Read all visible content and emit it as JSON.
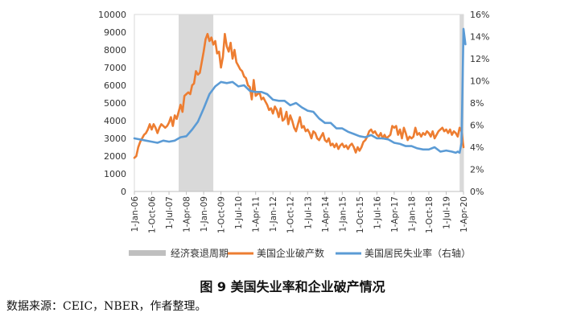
{
  "caption": "图 9  美国失业率和企业破产情况",
  "source": "数据来源：CEIC，NBER，作者整理。",
  "chart_data": {
    "type": "line",
    "title": "",
    "xlabel": "",
    "ylabel": "",
    "left_axis": {
      "min": 0,
      "max": 10000,
      "ticks": [
        "0",
        "1000",
        "2000",
        "3000",
        "4000",
        "5000",
        "6000",
        "7000",
        "8000",
        "9000",
        "10000"
      ]
    },
    "right_axis": {
      "min": 0,
      "max": 16,
      "ticks": [
        "0%",
        "2%",
        "4%",
        "6%",
        "8%",
        "10%",
        "12%",
        "14%",
        "16%"
      ]
    },
    "x_tick_labels": [
      "1-Jan-06",
      "1-Oct-06",
      "1-Jul-07",
      "1-Apr-08",
      "1-Jan-09",
      "1-Oct-09",
      "1-Jul-10",
      "1-Apr-11",
      "1-Jan-12",
      "1-Oct-12",
      "1-Jul-13",
      "1-Apr-14",
      "1-Jan-15",
      "1-Oct-15",
      "1-Jul-16",
      "1-Apr-17",
      "1-Jan-18",
      "1-Oct-18",
      "1-Jul-19",
      "1-Apr-20"
    ],
    "x_range": [
      "2006-01",
      "2020-04"
    ],
    "recessions": [
      {
        "start": "2007-12",
        "end": "2009-06"
      },
      {
        "start": "2020-02",
        "end": "2020-04"
      }
    ],
    "legend": {
      "position": "bottom",
      "items": [
        "经济衰退周期",
        "美国企业破产数",
        "美国居民失业率（右轴）"
      ]
    },
    "colors": {
      "recession": "#d9d9d9",
      "bankruptcy": "#ed7d31",
      "unemployment": "#5b9bd5"
    },
    "series": [
      {
        "name": "美国企业破产数",
        "axis": "left",
        "points": [
          [
            "2006-01",
            1900
          ],
          [
            "2006-02",
            2000
          ],
          [
            "2006-03",
            2500
          ],
          [
            "2006-04",
            2800
          ],
          [
            "2006-05",
            3000
          ],
          [
            "2006-06",
            3200
          ],
          [
            "2006-07",
            3300
          ],
          [
            "2006-08",
            3500
          ],
          [
            "2006-09",
            3800
          ],
          [
            "2006-10",
            3500
          ],
          [
            "2006-11",
            3800
          ],
          [
            "2006-12",
            3600
          ],
          [
            "2007-01",
            3300
          ],
          [
            "2007-02",
            3600
          ],
          [
            "2007-03",
            3800
          ],
          [
            "2007-04",
            3700
          ],
          [
            "2007-05",
            3600
          ],
          [
            "2007-06",
            3700
          ],
          [
            "2007-07",
            3900
          ],
          [
            "2007-08",
            4200
          ],
          [
            "2007-09",
            3700
          ],
          [
            "2007-10",
            4300
          ],
          [
            "2007-11",
            4100
          ],
          [
            "2007-12",
            4500
          ],
          [
            "2008-01",
            4900
          ],
          [
            "2008-02",
            4500
          ],
          [
            "2008-03",
            5400
          ],
          [
            "2008-04",
            5500
          ],
          [
            "2008-05",
            5600
          ],
          [
            "2008-06",
            5500
          ],
          [
            "2008-07",
            6000
          ],
          [
            "2008-08",
            6100
          ],
          [
            "2008-09",
            6800
          ],
          [
            "2008-10",
            6600
          ],
          [
            "2008-11",
            6700
          ],
          [
            "2008-12",
            7300
          ],
          [
            "2009-01",
            7900
          ],
          [
            "2009-02",
            8600
          ],
          [
            "2009-03",
            8900
          ],
          [
            "2009-04",
            8500
          ],
          [
            "2009-05",
            8700
          ],
          [
            "2009-06",
            8300
          ],
          [
            "2009-07",
            8500
          ],
          [
            "2009-08",
            7800
          ],
          [
            "2009-09",
            7900
          ],
          [
            "2009-10",
            7000
          ],
          [
            "2009-11",
            7600
          ],
          [
            "2009-12",
            8900
          ],
          [
            "2010-01",
            8200
          ],
          [
            "2010-02",
            7900
          ],
          [
            "2010-03",
            8400
          ],
          [
            "2010-04",
            7500
          ],
          [
            "2010-05",
            8000
          ],
          [
            "2010-06",
            7300
          ],
          [
            "2010-07",
            7100
          ],
          [
            "2010-08",
            6900
          ],
          [
            "2010-09",
            6800
          ],
          [
            "2010-10",
            6500
          ],
          [
            "2010-11",
            6400
          ],
          [
            "2010-12",
            6000
          ],
          [
            "2011-01",
            5900
          ],
          [
            "2011-02",
            5200
          ],
          [
            "2011-03",
            6300
          ],
          [
            "2011-04",
            5400
          ],
          [
            "2011-05",
            5500
          ],
          [
            "2011-06",
            5600
          ],
          [
            "2011-07",
            5200
          ],
          [
            "2011-08",
            5300
          ],
          [
            "2011-09",
            5100
          ],
          [
            "2011-10",
            4900
          ],
          [
            "2011-11",
            4600
          ],
          [
            "2011-12",
            4700
          ],
          [
            "2012-01",
            4400
          ],
          [
            "2012-02",
            4800
          ],
          [
            "2012-03",
            4600
          ],
          [
            "2012-04",
            4200
          ],
          [
            "2012-05",
            4700
          ],
          [
            "2012-06",
            4000
          ],
          [
            "2012-07",
            4100
          ],
          [
            "2012-08",
            4500
          ],
          [
            "2012-09",
            3800
          ],
          [
            "2012-10",
            4300
          ],
          [
            "2012-11",
            4000
          ],
          [
            "2012-12",
            3600
          ],
          [
            "2013-01",
            3400
          ],
          [
            "2013-02",
            3800
          ],
          [
            "2013-03",
            4200
          ],
          [
            "2013-04",
            3600
          ],
          [
            "2013-05",
            3700
          ],
          [
            "2013-06",
            3400
          ],
          [
            "2013-07",
            3500
          ],
          [
            "2013-08",
            3300
          ],
          [
            "2013-09",
            3000
          ],
          [
            "2013-10",
            3400
          ],
          [
            "2013-11",
            3300
          ],
          [
            "2013-12",
            3000
          ],
          [
            "2014-01",
            2900
          ],
          [
            "2014-02",
            3100
          ],
          [
            "2014-03",
            3300
          ],
          [
            "2014-04",
            2900
          ],
          [
            "2014-05",
            2800
          ],
          [
            "2014-06",
            3000
          ],
          [
            "2014-07",
            2600
          ],
          [
            "2014-08",
            2700
          ],
          [
            "2014-09",
            2500
          ],
          [
            "2014-10",
            2700
          ],
          [
            "2014-11",
            2400
          ],
          [
            "2014-12",
            2600
          ],
          [
            "2015-01",
            2700
          ],
          [
            "2015-02",
            2500
          ],
          [
            "2015-03",
            2600
          ],
          [
            "2015-04",
            2400
          ],
          [
            "2015-05",
            2600
          ],
          [
            "2015-06",
            2700
          ],
          [
            "2015-07",
            2500
          ],
          [
            "2015-08",
            2200
          ],
          [
            "2015-09",
            2500
          ],
          [
            "2015-10",
            2300
          ],
          [
            "2015-11",
            2500
          ],
          [
            "2015-12",
            2800
          ],
          [
            "2016-01",
            2900
          ],
          [
            "2016-02",
            3100
          ],
          [
            "2016-03",
            3400
          ],
          [
            "2016-04",
            3500
          ],
          [
            "2016-05",
            3300
          ],
          [
            "2016-06",
            3400
          ],
          [
            "2016-07",
            3200
          ],
          [
            "2016-08",
            3100
          ],
          [
            "2016-09",
            3300
          ],
          [
            "2016-10",
            3000
          ],
          [
            "2016-11",
            3200
          ],
          [
            "2016-12",
            3000
          ],
          [
            "2017-01",
            3100
          ],
          [
            "2017-02",
            3200
          ],
          [
            "2017-03",
            3700
          ],
          [
            "2017-04",
            3600
          ],
          [
            "2017-05",
            3700
          ],
          [
            "2017-06",
            3200
          ],
          [
            "2017-07",
            3500
          ],
          [
            "2017-08",
            3000
          ],
          [
            "2017-09",
            3600
          ],
          [
            "2017-10",
            3300
          ],
          [
            "2017-11",
            2900
          ],
          [
            "2017-12",
            3100
          ],
          [
            "2018-01",
            3000
          ],
          [
            "2018-02",
            3100
          ],
          [
            "2018-03",
            3600
          ],
          [
            "2018-04",
            3200
          ],
          [
            "2018-05",
            3300
          ],
          [
            "2018-06",
            3100
          ],
          [
            "2018-07",
            3300
          ],
          [
            "2018-08",
            3200
          ],
          [
            "2018-09",
            3400
          ],
          [
            "2018-10",
            3300
          ],
          [
            "2018-11",
            3100
          ],
          [
            "2018-12",
            3400
          ],
          [
            "2019-01",
            3000
          ],
          [
            "2019-02",
            3200
          ],
          [
            "2019-03",
            3400
          ],
          [
            "2019-04",
            3500
          ],
          [
            "2019-05",
            3600
          ],
          [
            "2019-06",
            3400
          ],
          [
            "2019-07",
            3500
          ],
          [
            "2019-08",
            3300
          ],
          [
            "2019-09",
            3500
          ],
          [
            "2019-10",
            3200
          ],
          [
            "2019-11",
            3400
          ],
          [
            "2019-12",
            3300
          ],
          [
            "2020-01",
            3100
          ],
          [
            "2020-02",
            3600
          ],
          [
            "2020-03",
            3400
          ],
          [
            "2020-04",
            2500
          ]
        ]
      },
      {
        "name": "美国居民失业率（右轴）",
        "axis": "right",
        "points": [
          [
            "2006-01",
            4.8
          ],
          [
            "2006-04",
            4.7
          ],
          [
            "2006-07",
            4.6
          ],
          [
            "2006-10",
            4.5
          ],
          [
            "2007-01",
            4.4
          ],
          [
            "2007-04",
            4.6
          ],
          [
            "2007-07",
            4.5
          ],
          [
            "2007-10",
            4.6
          ],
          [
            "2008-01",
            4.9
          ],
          [
            "2008-04",
            5.0
          ],
          [
            "2008-07",
            5.6
          ],
          [
            "2008-10",
            6.3
          ],
          [
            "2009-01",
            7.5
          ],
          [
            "2009-04",
            8.8
          ],
          [
            "2009-07",
            9.5
          ],
          [
            "2009-10",
            9.9
          ],
          [
            "2010-01",
            9.8
          ],
          [
            "2010-04",
            9.9
          ],
          [
            "2010-07",
            9.5
          ],
          [
            "2010-10",
            9.6
          ],
          [
            "2011-01",
            9.1
          ],
          [
            "2011-04",
            9.0
          ],
          [
            "2011-07",
            9.0
          ],
          [
            "2011-10",
            8.8
          ],
          [
            "2012-01",
            8.3
          ],
          [
            "2012-04",
            8.2
          ],
          [
            "2012-07",
            8.2
          ],
          [
            "2012-10",
            7.8
          ],
          [
            "2013-01",
            8.0
          ],
          [
            "2013-04",
            7.6
          ],
          [
            "2013-07",
            7.3
          ],
          [
            "2013-10",
            7.2
          ],
          [
            "2014-01",
            6.6
          ],
          [
            "2014-04",
            6.2
          ],
          [
            "2014-07",
            6.2
          ],
          [
            "2014-10",
            5.7
          ],
          [
            "2015-01",
            5.7
          ],
          [
            "2015-04",
            5.4
          ],
          [
            "2015-07",
            5.2
          ],
          [
            "2015-10",
            5.0
          ],
          [
            "2016-01",
            4.9
          ],
          [
            "2016-04",
            5.1
          ],
          [
            "2016-07",
            4.8
          ],
          [
            "2016-10",
            4.8
          ],
          [
            "2017-01",
            4.7
          ],
          [
            "2017-04",
            4.4
          ],
          [
            "2017-07",
            4.3
          ],
          [
            "2017-10",
            4.1
          ],
          [
            "2018-01",
            4.1
          ],
          [
            "2018-04",
            3.9
          ],
          [
            "2018-07",
            3.8
          ],
          [
            "2018-10",
            3.8
          ],
          [
            "2019-01",
            4.0
          ],
          [
            "2019-04",
            3.6
          ],
          [
            "2019-07",
            3.7
          ],
          [
            "2019-10",
            3.6
          ],
          [
            "2019-12",
            3.5
          ],
          [
            "2020-01",
            3.6
          ],
          [
            "2020-02",
            3.5
          ],
          [
            "2020-03",
            4.4
          ],
          [
            "2020-04",
            14.7
          ],
          [
            "2020-05",
            13.3
          ]
        ]
      }
    ]
  }
}
